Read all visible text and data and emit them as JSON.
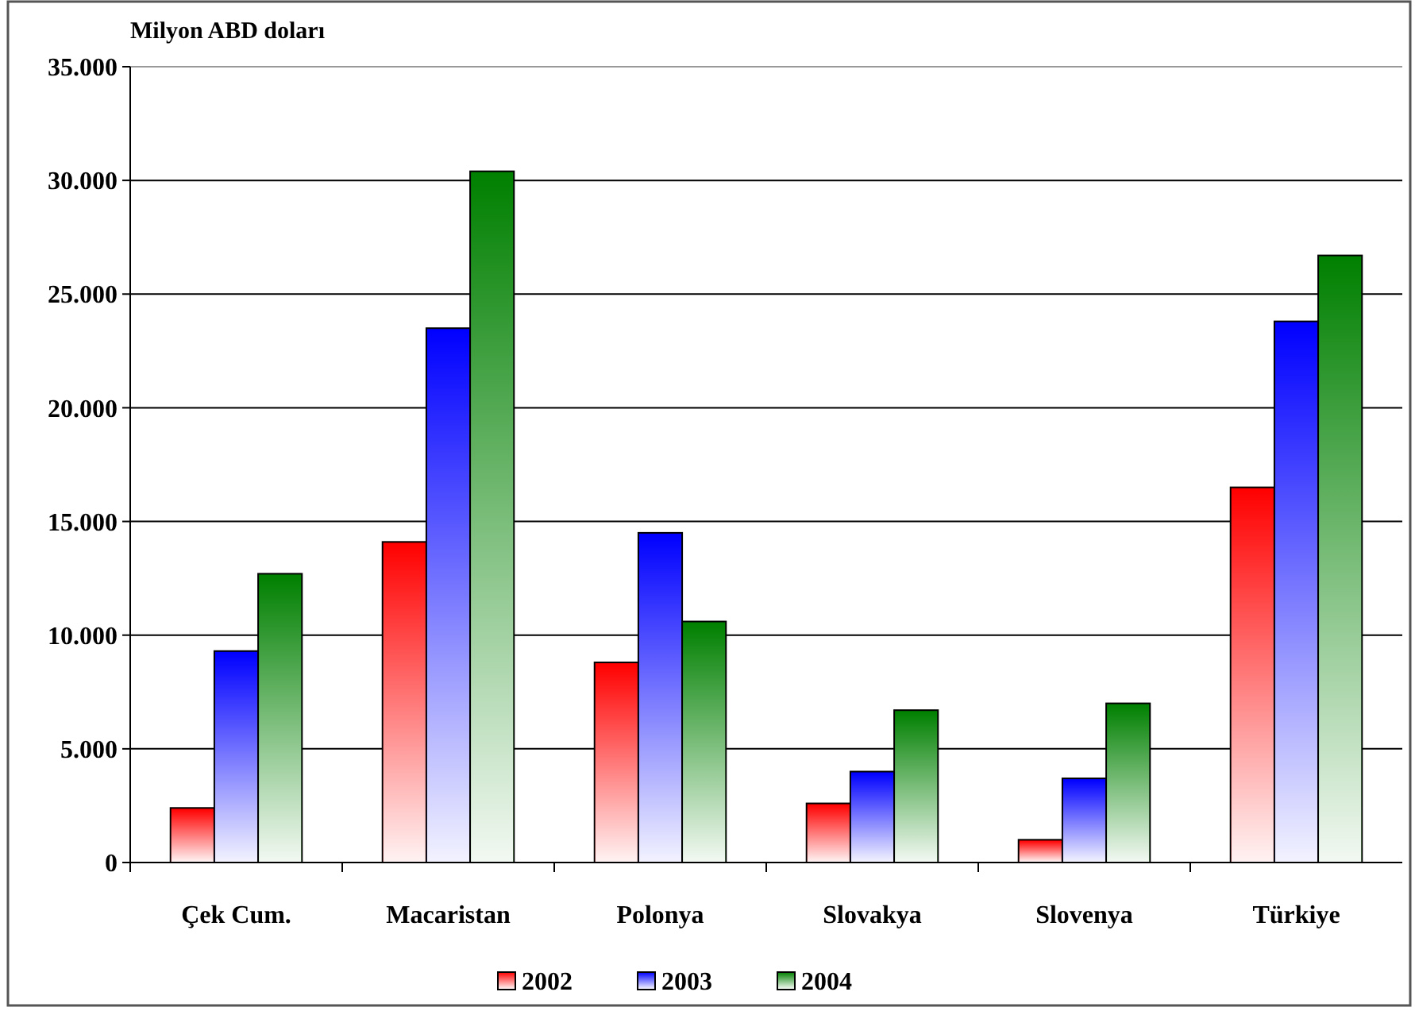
{
  "chart_data": {
    "type": "bar",
    "ylabel": "Milyon ABD doları",
    "categories": [
      "Çek Cum.",
      "Macaristan",
      "Polonya",
      "Slovakya",
      "Slovenya",
      "Türkiye"
    ],
    "series": [
      {
        "name": "2002",
        "color": "#ff0000",
        "values": [
          2400,
          14100,
          8800,
          2600,
          1000,
          16500
        ]
      },
      {
        "name": "2003",
        "color": "#0000ff",
        "values": [
          9300,
          23500,
          14500,
          4000,
          3700,
          23800
        ]
      },
      {
        "name": "2004",
        "color": "#008000",
        "values": [
          12700,
          30400,
          10600,
          6700,
          7000,
          26700
        ]
      }
    ],
    "ylim": [
      0,
      35000
    ],
    "yticks": [
      0,
      {
        "value": 5000,
        "label": "5.000"
      },
      {
        "value": 10000,
        "label": "10.000"
      },
      {
        "value": 15000,
        "label": "15.000"
      },
      {
        "value": 20000,
        "label": "20.000"
      },
      {
        "value": 25000,
        "label": "25.000"
      },
      {
        "value": 30000,
        "label": "30.000"
      },
      {
        "value": 35000,
        "label": "35.000"
      }
    ],
    "grid": "y",
    "legend": "bottom"
  }
}
